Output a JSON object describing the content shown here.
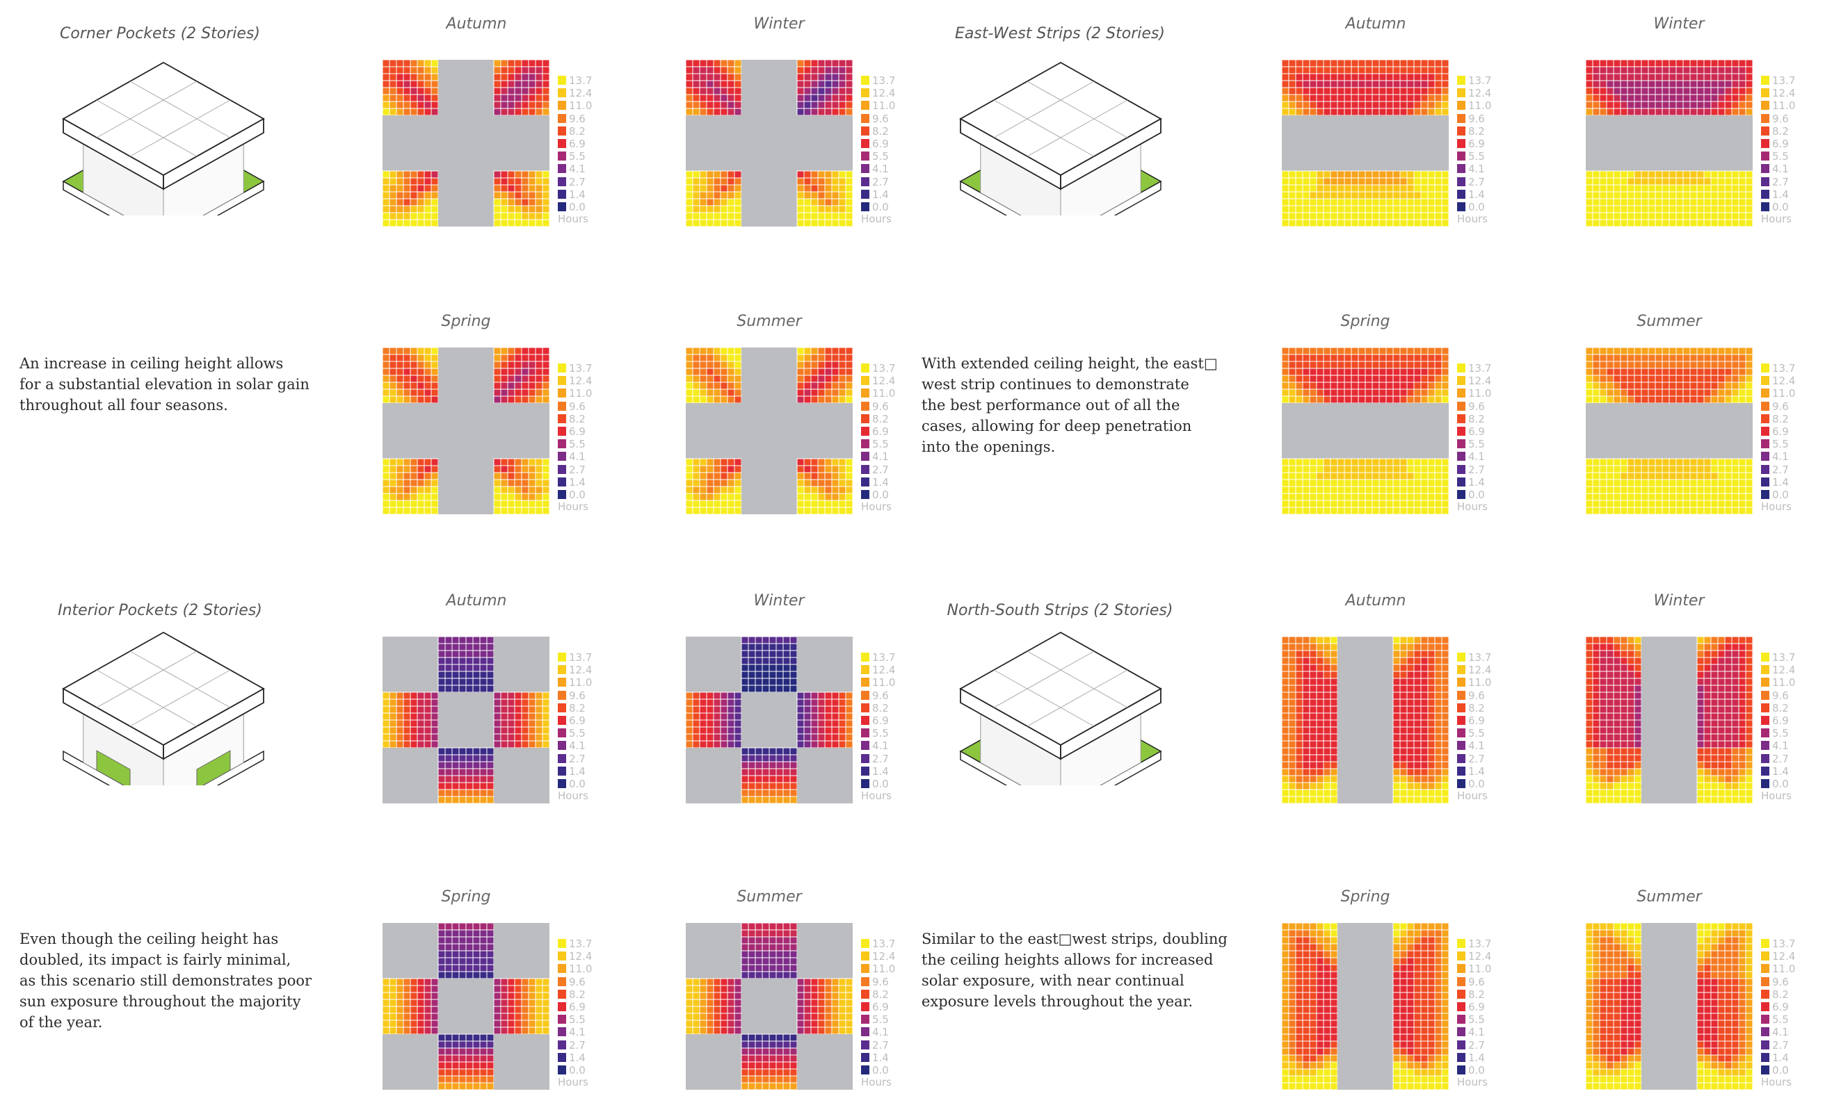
{
  "colors": {
    "scale": [
      "#252a7c",
      "#3a2b86",
      "#5b2d8e",
      "#7d2c88",
      "#a62a73",
      "#cc2a52",
      "#e52a33",
      "#ef4a23",
      "#f47a22",
      "#f7a31b",
      "#f9c91a",
      "#f6ec1c"
    ],
    "blocked": "#bcbdc0",
    "green": "#8cc63f",
    "grid": "#ffffff"
  },
  "legend": {
    "labels": [
      "13.7",
      "12.4",
      "11.0",
      "9.6",
      "8.2",
      "6.9",
      "5.5",
      "4.1",
      "2.7",
      "1.4",
      "0.0"
    ],
    "units": "Hours"
  },
  "cases": [
    {
      "key": "corner",
      "title": "Corner Pockets (2 Stories)",
      "description": [
        "An increase in ceiling height allows",
        "for a substantial elevation in solar gain",
        "throughout all four seasons."
      ],
      "seasons": [
        {
          "label": "Autumn"
        },
        {
          "label": "Winter"
        },
        {
          "label": "Spring"
        },
        {
          "label": "Summer"
        }
      ]
    },
    {
      "key": "ew",
      "title": "East-West Strips (2 Stories)",
      "description": [
        "With extended ceiling height, the east□",
        "west strip continues to demonstrate",
        "the best performance out of all the",
        "cases, allowing for deep penetration",
        "into the openings."
      ],
      "seasons": [
        {
          "label": "Autumn"
        },
        {
          "label": "Winter"
        },
        {
          "label": "Spring"
        },
        {
          "label": "Summer"
        }
      ]
    },
    {
      "key": "interior",
      "title": "Interior Pockets (2 Stories)",
      "description": [
        "Even though the ceiling height has",
        "doubled, its impact is fairly minimal,",
        "as this scenario still demonstrates poor",
        "sun exposure throughout the majority",
        "of the year."
      ],
      "seasons": [
        {
          "label": "Autumn"
        },
        {
          "label": "Winter"
        },
        {
          "label": "Spring"
        },
        {
          "label": "Summer"
        }
      ]
    },
    {
      "key": "ns",
      "title": "North-South Strips (2 Stories)",
      "description": [
        "Similar to the east□west strips, doubling",
        "the ceiling heights allows for increased",
        "solar exposure, with near continual",
        "exposure levels throughout the year."
      ],
      "seasons": [
        {
          "label": "Autumn"
        },
        {
          "label": "Winter"
        },
        {
          "label": "Spring"
        },
        {
          "label": "Summer"
        }
      ]
    }
  ]
}
